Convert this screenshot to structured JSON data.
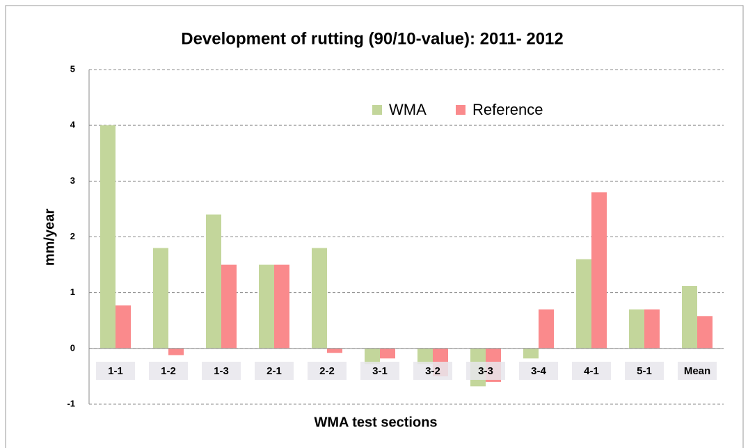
{
  "chart_data": {
    "type": "bar",
    "title": "Development of rutting  (90/10-value): 2011- 2012",
    "y_label": "mm/year",
    "x_label": "WMA test sections",
    "categories": [
      "1-1",
      "1-2",
      "1-3",
      "2-1",
      "2-2",
      "3-1",
      "3-2",
      "3-3",
      "3-4",
      "4-1",
      "5-1",
      "Mean"
    ],
    "series": [
      {
        "name": "WMA",
        "color": "#c3d69b",
        "values": [
          4.0,
          1.8,
          2.4,
          1.5,
          1.8,
          -0.28,
          -0.28,
          -0.68,
          -0.18,
          1.6,
          0.7,
          1.12
        ]
      },
      {
        "name": "Reference",
        "color": "#fa8a8c",
        "values": [
          0.77,
          -0.12,
          1.5,
          1.5,
          -0.08,
          -0.18,
          -0.5,
          -0.6,
          0.7,
          2.8,
          0.7,
          0.58
        ]
      }
    ],
    "ylim": [
      -1,
      5
    ],
    "yticks": [
      -1,
      0,
      1,
      2,
      3,
      4,
      5
    ],
    "grid": true
  }
}
